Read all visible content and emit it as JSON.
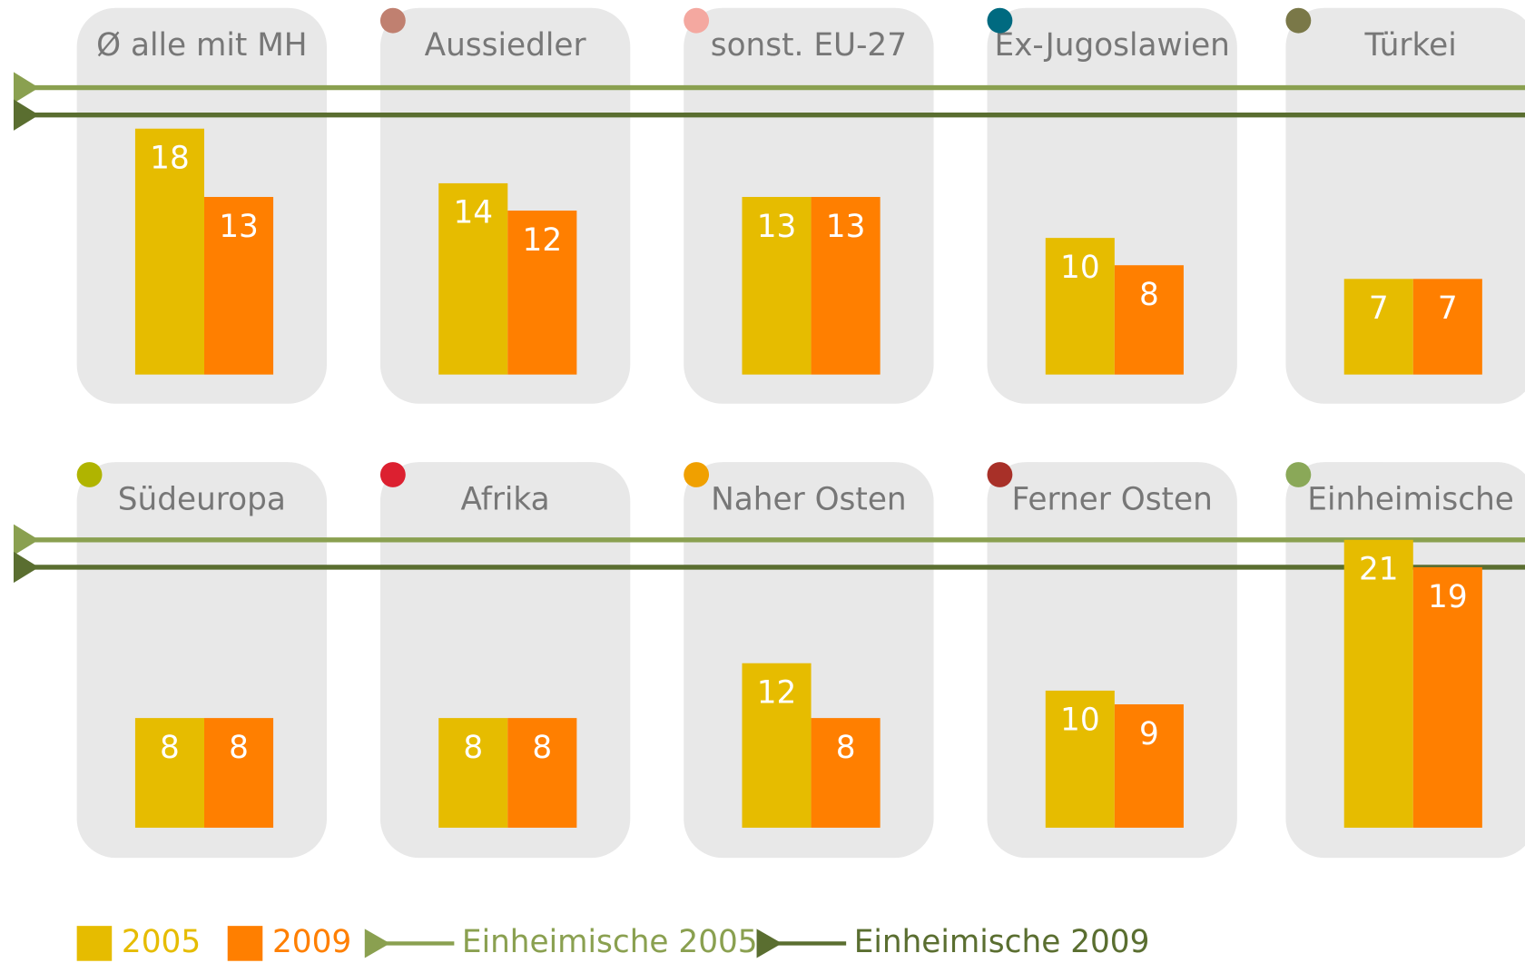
{
  "chart_data": {
    "type": "bar",
    "categories": [
      "Ø alle mit MH",
      "Aussiedler",
      "sonst. EU-27",
      "Ex-Jugoslawien",
      "Türkei",
      "Südeuropa",
      "Afrika",
      "Naher Osten",
      "Ferner Osten",
      "Einheimische"
    ],
    "marker_colors": [
      null,
      "#c08070",
      "#f4a8a0",
      "#006a80",
      "#7a7848",
      "#b0b400",
      "#dc2030",
      "#f0a000",
      "#a83028",
      "#8aa858"
    ],
    "series": [
      {
        "name": "2005",
        "color": "#e6bc00",
        "values": [
          18,
          14,
          13,
          10,
          7,
          8,
          8,
          12,
          10,
          21
        ]
      },
      {
        "name": "2009",
        "color": "#ff7f00",
        "values": [
          13,
          12,
          13,
          8,
          7,
          8,
          8,
          8,
          9,
          19
        ]
      }
    ],
    "reference_lines": [
      {
        "name": "Einheimische 2005",
        "color": "#8aa050",
        "value": 21
      },
      {
        "name": "Einheimische 2009",
        "color": "#5a6e30",
        "value": 19
      }
    ],
    "ylim": [
      0,
      21
    ]
  }
}
